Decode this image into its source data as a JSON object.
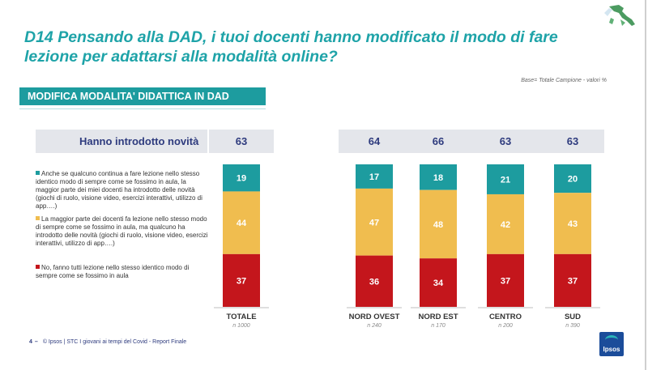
{
  "title": "D14 Pensando alla DAD, i tuoi docenti hanno modificato il modo di fare lezione per adattarsi alla modalità online?",
  "base_note": "Base= Totale Campione - valori %",
  "section_title": "MODIFICA MODALITA' DIDATTICA IN DAD",
  "summary_label": "Hanno introdotto novità",
  "row_labels": [
    "Anche se qualcuno continua a fare lezione nello stesso identico modo di sempre come se fossimo in aula, la maggior parte dei miei docenti ha introdotto delle novità (giochi di ruolo, visione video, esercizi interattivi, utilizzo di app….)",
    "La maggior parte dei docenti fa lezione nello stesso modo di sempre come se fossimo in aula, ma qualcuno ha introdotto delle novità (giochi di ruolo, visione video, esercizi interattivi, utilizzo di app….)",
    "No, fanno tutti lezione nello stesso identico modo di sempre come se fossimo in aula"
  ],
  "colors": {
    "teal": "#1d9c9f",
    "yellow": "#f0bd4f",
    "red": "#c4161c",
    "header_text": "#2e3b7e",
    "band": "#e4e6eb"
  },
  "chart_data": {
    "type": "bar",
    "stacked": true,
    "categories": [
      "TOTALE",
      "NORD OVEST",
      "NORD EST",
      "CENTRO",
      "SUD"
    ],
    "sample_sizes": [
      "n 1000",
      "n 240",
      "n 170",
      "n 200",
      "n 390"
    ],
    "summary_values": [
      63,
      64,
      66,
      63,
      63
    ],
    "series": [
      {
        "values": [
          19,
          17,
          18,
          21,
          20
        ],
        "color": "#1d9c9f"
      },
      {
        "values": [
          44,
          47,
          48,
          42,
          43
        ],
        "color": "#f0bd4f"
      },
      {
        "values": [
          37,
          36,
          34,
          37,
          37
        ],
        "color": "#c4161c"
      }
    ],
    "ylim": [
      0,
      100
    ]
  },
  "footer": {
    "page_number": "4",
    "dash": "–",
    "text": "© Ipsos | STC I giovani ai tempi del Covid - Report Finale"
  },
  "logo_text": "Ipsos"
}
